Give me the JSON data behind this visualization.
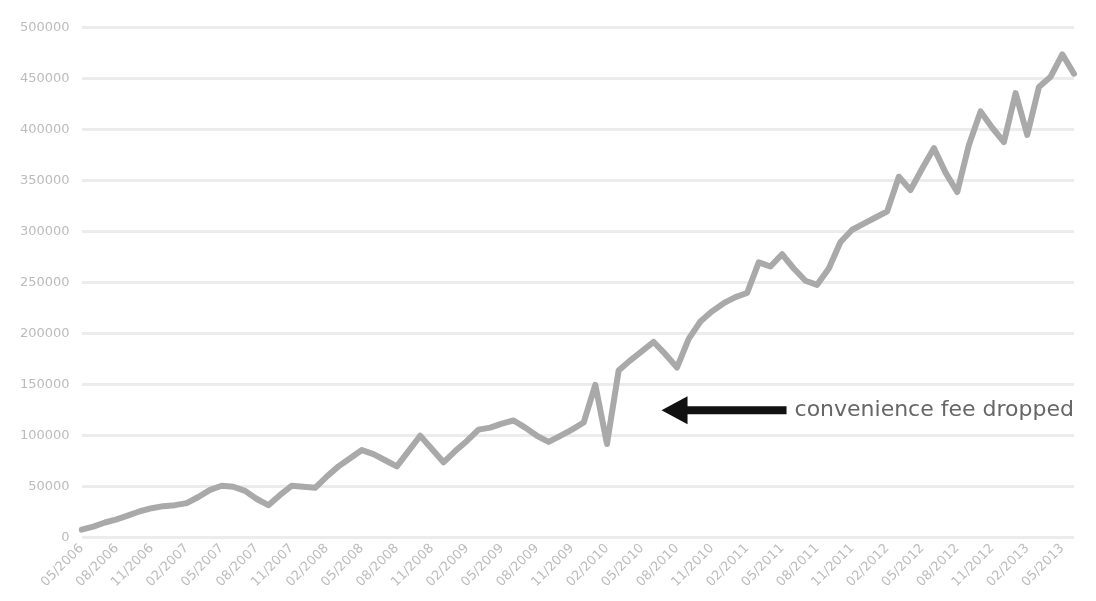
{
  "chart_data": {
    "type": "line",
    "categories": [
      "05/2006",
      null,
      null,
      "08/2006",
      null,
      null,
      "11/2006",
      null,
      null,
      "02/2007",
      null,
      null,
      "05/2007",
      null,
      null,
      "08/2007",
      null,
      null,
      "11/2007",
      null,
      null,
      "02/2008",
      null,
      null,
      "05/2008",
      null,
      null,
      "08/2008",
      null,
      null,
      "11/2008",
      null,
      null,
      "02/2009",
      null,
      null,
      "05/2009",
      null,
      null,
      "08/2009",
      null,
      null,
      "11/2009",
      null,
      null,
      "02/2010",
      null,
      null,
      "05/2010",
      null,
      null,
      "08/2010",
      null,
      null,
      "11/2010",
      null,
      null,
      "02/2011",
      null,
      null,
      "05/2011",
      null,
      null,
      "08/2011",
      null,
      null,
      "11/2011",
      null,
      null,
      "02/2012",
      null,
      null,
      "05/2012",
      null,
      null,
      "08/2012",
      null,
      null,
      "11/2012",
      null,
      null,
      "02/2013",
      null,
      null,
      "05/2013",
      null
    ],
    "series": [
      {
        "color": "#a9a9a9",
        "values": [
          8000,
          11000,
          15000,
          18000,
          22000,
          26000,
          29000,
          31000,
          32000,
          34000,
          40000,
          47000,
          51000,
          50000,
          46000,
          38000,
          32000,
          42000,
          51000,
          50000,
          49000,
          60000,
          70000,
          78000,
          86000,
          82000,
          76000,
          70000,
          85000,
          100000,
          87000,
          74000,
          85000,
          95000,
          106000,
          108000,
          112000,
          115000,
          108000,
          100000,
          94000,
          100000,
          106000,
          113000,
          150000,
          92000,
          164000,
          174000,
          183000,
          192000,
          180000,
          167000,
          195000,
          212000,
          222000,
          230000,
          236000,
          240000,
          270000,
          266000,
          278000,
          264000,
          252000,
          248000,
          264000,
          290000,
          302000,
          308000,
          314000,
          320000,
          354000,
          341000,
          362000,
          382000,
          358000,
          339000,
          385000,
          418000,
          402000,
          388000,
          436000,
          395000,
          442000,
          452000,
          474000,
          455000
        ]
      }
    ],
    "ylim": [
      0,
      500000
    ],
    "yticks": [
      0,
      50000,
      100000,
      150000,
      200000,
      250000,
      300000,
      350000,
      400000,
      450000,
      500000
    ],
    "grid": "y",
    "legend": false,
    "marker": "none",
    "line_style": "solid",
    "annotations": [
      "convenience fee dropped"
    ]
  }
}
